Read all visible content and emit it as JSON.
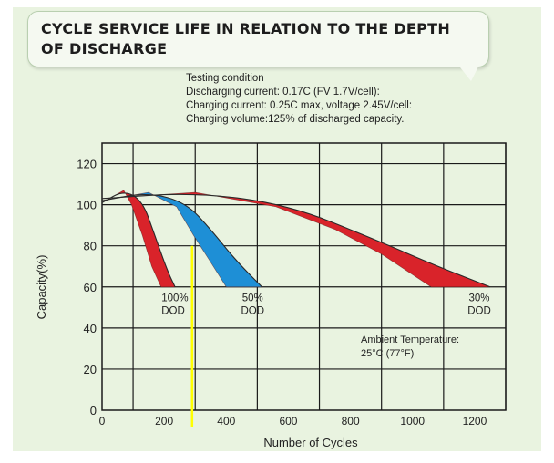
{
  "title": "CYCLE SERVICE LIFE IN RELATION TO THE DEPTH OF DISCHARGE",
  "conditions": [
    "Testing condition",
    "Discharging current: 0.17C (FV 1.7V/cell):",
    "Charging current: 0.25C max, voltage 2.45V/cell:",
    "Charging volume:125% of discharged capacity."
  ],
  "colors": {
    "dod100": "#d9232a",
    "dod50": "#1e8fd6",
    "dod30": "#d9232a",
    "marker": "#ffff00",
    "plot_bg": "#e9f3e0",
    "grid": "#1a1a1a"
  },
  "chart_data": {
    "type": "area",
    "xlabel": "Number of Cycles",
    "ylabel": "Capacity(%)",
    "xlim": [
      0,
      1300
    ],
    "ylim": [
      0,
      130
    ],
    "xticks": [
      0,
      200,
      400,
      600,
      800,
      1000,
      1200
    ],
    "yticks": [
      0,
      20,
      40,
      60,
      80,
      100,
      120
    ],
    "grid": true,
    "series": [
      {
        "name": "100% DOD",
        "label_lines": [
          "100%",
          "DOD"
        ],
        "upper": [
          [
            0,
            101
          ],
          [
            70,
            107
          ],
          [
            130,
            102
          ],
          [
            170,
            85
          ],
          [
            210,
            68
          ],
          [
            235,
            60
          ]
        ],
        "lower": [
          [
            0,
            101
          ],
          [
            70,
            107
          ],
          [
            95,
            100
          ],
          [
            130,
            85
          ],
          [
            160,
            70
          ],
          [
            190,
            60
          ]
        ]
      },
      {
        "name": "50% DOD",
        "label_lines": [
          "50%",
          "DOD"
        ],
        "upper": [
          [
            0,
            102
          ],
          [
            150,
            106
          ],
          [
            270,
            101
          ],
          [
            350,
            88
          ],
          [
            430,
            73
          ],
          [
            515,
            60
          ]
        ],
        "lower": [
          [
            0,
            102
          ],
          [
            150,
            106
          ],
          [
            240,
            99
          ],
          [
            295,
            85
          ],
          [
            350,
            72
          ],
          [
            400,
            60
          ]
        ]
      },
      {
        "name": "30% DOD",
        "label_lines": [
          "30%",
          "DOD"
        ],
        "upper": [
          [
            0,
            103
          ],
          [
            300,
            106
          ],
          [
            600,
            100
          ],
          [
            880,
            83
          ],
          [
            1080,
            70
          ],
          [
            1250,
            60
          ]
        ],
        "lower": [
          [
            0,
            103
          ],
          [
            300,
            106
          ],
          [
            560,
            99
          ],
          [
            750,
            88
          ],
          [
            900,
            76
          ],
          [
            1060,
            60
          ]
        ]
      }
    ],
    "annotation_lines": [
      "Ambient Temperature:",
      "25°C (77°F)"
    ],
    "marker_line": {
      "x": 290,
      "y_from": 0,
      "y_to": 80
    }
  }
}
